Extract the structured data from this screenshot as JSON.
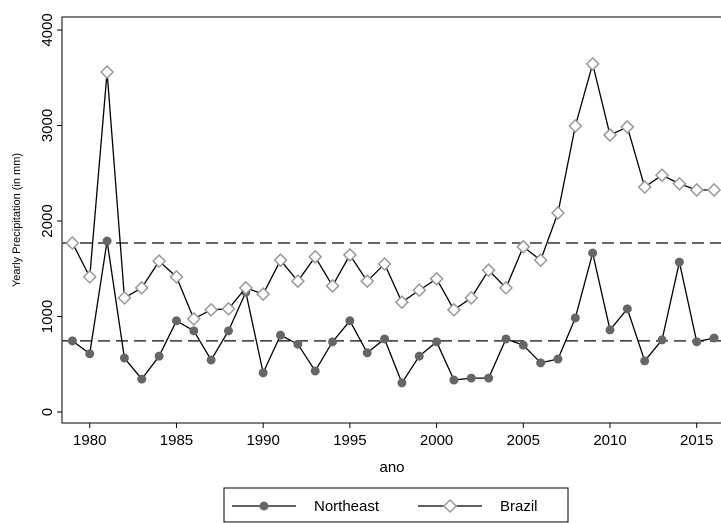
{
  "chart_data": {
    "type": "line",
    "x": [
      1979,
      1980,
      1981,
      1982,
      1983,
      1984,
      1985,
      1986,
      1987,
      1988,
      1989,
      1990,
      1991,
      1992,
      1993,
      1994,
      1995,
      1996,
      1997,
      1998,
      1999,
      2000,
      2001,
      2002,
      2003,
      2004,
      2005,
      2006,
      2007,
      2008,
      2009,
      2010,
      2011,
      2012,
      2013,
      2014,
      2015,
      2016
    ],
    "series": [
      {
        "name": "Northeast",
        "color": "#666666",
        "marker": "circle",
        "values": [
          745,
          610,
          1790,
          565,
          345,
          585,
          955,
          850,
          545,
          850,
          1255,
          410,
          805,
          710,
          430,
          735,
          955,
          620,
          765,
          305,
          585,
          735,
          335,
          355,
          355,
          765,
          700,
          515,
          555,
          985,
          1665,
          860,
          1080,
          535,
          755,
          1570,
          735,
          775
        ]
      },
      {
        "name": "Brazil",
        "color": "#999999",
        "marker": "diamond",
        "values": [
          1770,
          1415,
          3560,
          1195,
          1300,
          1580,
          1415,
          975,
          1070,
          1080,
          1300,
          1235,
          1590,
          1370,
          1625,
          1320,
          1645,
          1370,
          1550,
          1150,
          1275,
          1395,
          1070,
          1195,
          1485,
          1300,
          1730,
          1590,
          2085,
          2995,
          3645,
          2900,
          2985,
          2355,
          2480,
          2390,
          2325,
          2325
        ]
      }
    ],
    "reference_lines": [
      1770,
      745
    ],
    "xlabel": "ano",
    "ylabel": "Yearly Precipitation (in mm)",
    "xlim": [
      1978.4,
      2016.4
    ],
    "ylim": [
      -115,
      4136
    ],
    "xticks": [
      1980,
      1985,
      1990,
      1995,
      2000,
      2005,
      2010,
      2015
    ],
    "yticks": [
      0,
      1000,
      2000,
      3000,
      4000
    ],
    "legend": "bottom"
  }
}
